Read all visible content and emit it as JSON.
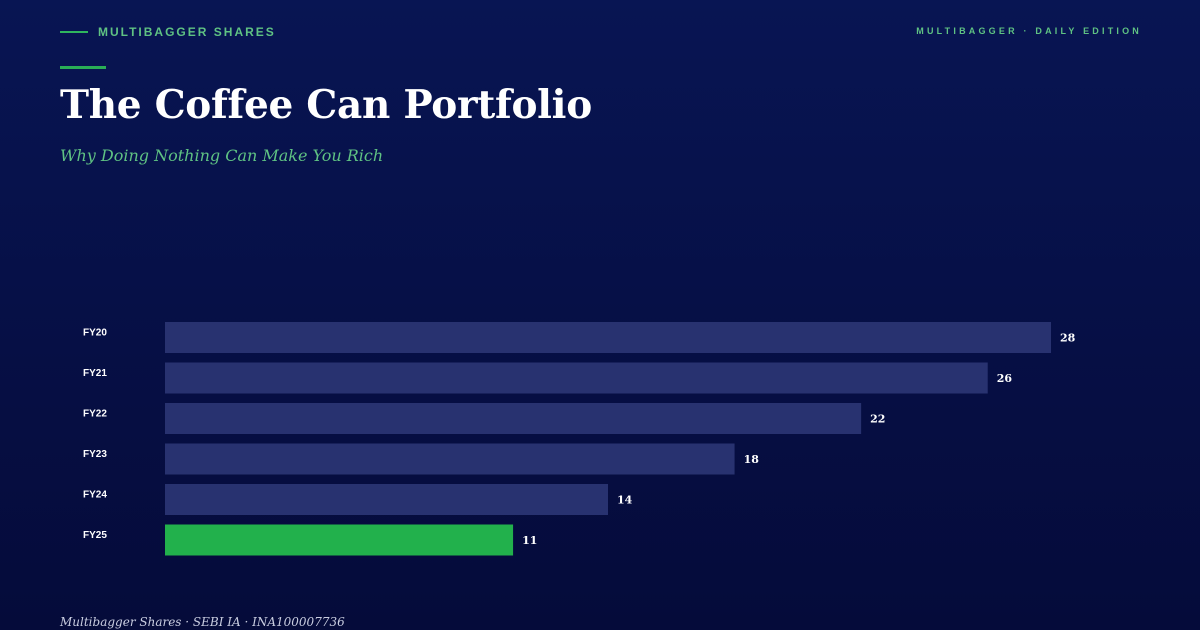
{
  "header": {
    "brand": "MULTIBAGGER SHARES",
    "edition": "MULTIBAGGER · DAILY EDITION"
  },
  "title": "The Coffee Can Portfolio",
  "subtitle": "Why Doing Nothing Can Make You Rich",
  "footer": "Multibagger Shares · SEBI IA · INA100007736",
  "colors": {
    "bar": "#283270",
    "highlight": "#22b14c",
    "accent": "#5fc283"
  },
  "chart_data": {
    "type": "bar",
    "orientation": "horizontal",
    "categories": [
      "FY20",
      "FY21",
      "FY22",
      "FY23",
      "FY24",
      "FY25"
    ],
    "values": [
      28,
      26,
      22,
      18,
      14,
      11
    ],
    "highlight_index": 5,
    "xlim": [
      0,
      28
    ],
    "grid": false,
    "legend": "none"
  }
}
